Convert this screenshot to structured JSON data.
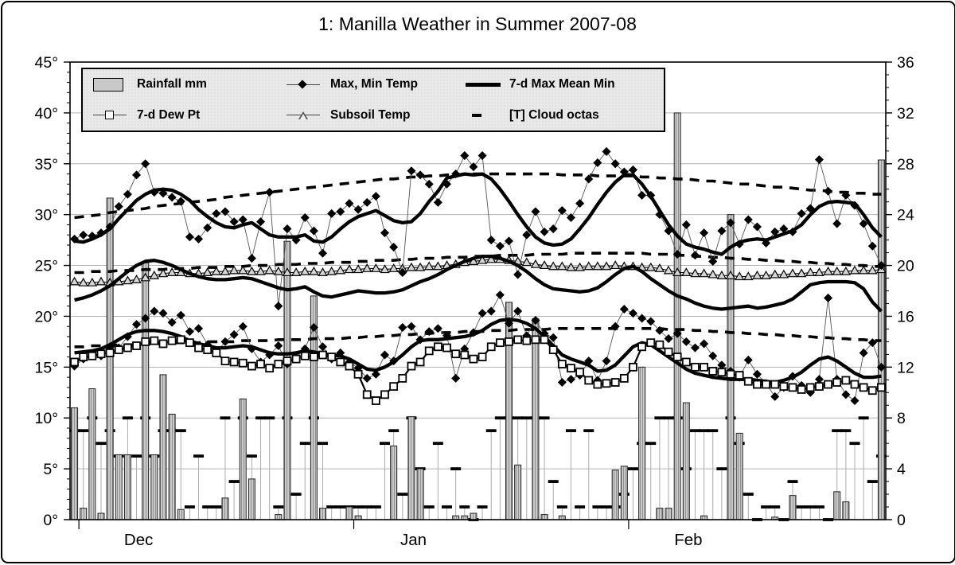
{
  "title": "1: Manilla Weather in Summer 2007-08",
  "legend": {
    "items": [
      {
        "label": "Rainfall mm",
        "marker": "gray-bar-swatch"
      },
      {
        "label": "Max, Min Temp",
        "marker": "black-diamond-on-line"
      },
      {
        "label": "7-d  Max Mean Min",
        "marker": "thick-black-line"
      },
      {
        "label": "7-d Dew Pt",
        "marker": "open-square-on-line"
      },
      {
        "label": "Subsoil Temp",
        "marker": "open-triangle-on-line"
      },
      {
        "label": "[T] Cloud octas",
        "marker": "short-black-dash"
      }
    ]
  },
  "colors": {
    "bar_fill": "#c9c9c9",
    "bar_hatch": "#8f8f8f",
    "bar_edge": "#222222",
    "grid": "#b3b3b3",
    "series_black": "#000000",
    "connector": "#555555",
    "cloud_stem": "#ababab",
    "triangle_fill": "#d6d6d6",
    "legend_bg": "#e9e9e9"
  },
  "chart_data": {
    "type": "composite",
    "title": "1: Manilla Weather in Summer 2007-08",
    "x": {
      "start": "30 Nov 2007",
      "end": "29 Feb 2008",
      "days": 92,
      "months": [
        {
          "label": "Dec",
          "boundary_index": 1
        },
        {
          "label": "Jan",
          "boundary_index": 32
        },
        {
          "label": "Feb",
          "boundary_index": 63
        }
      ]
    },
    "left_axis": {
      "unit": "degC",
      "min": 0,
      "max": 45,
      "major_step": 5,
      "minor_step": 1,
      "ticks": [
        "45°",
        "40°",
        "35°",
        "30°",
        "25°",
        "20°",
        "15°",
        "10°",
        "5°",
        "0°"
      ]
    },
    "right_axis": {
      "unit": "mm / octas x4",
      "min": 0,
      "max": 36,
      "major_step": 4,
      "minor_step": 1,
      "ticks": [
        "36",
        "32",
        "28",
        "24",
        "20",
        "16",
        "12",
        "8",
        "4",
        "0"
      ]
    },
    "grid": "horizontal-only",
    "legend_position": "top-inside",
    "series": {
      "max_temp": [
        27.6,
        28.0,
        27.9,
        28.2,
        28.8,
        30.8,
        32.0,
        33.9,
        35.0,
        32.2,
        32.1,
        31.7,
        31.3,
        27.8,
        27.6,
        28.7,
        30.1,
        30.3,
        29.3,
        29.5,
        25.7,
        29.3,
        32.2,
        21.0,
        28.6,
        27.5,
        29.7,
        28.4,
        26.2,
        30.1,
        30.3,
        31.1,
        30.5,
        31.2,
        31.8,
        28.2,
        26.8,
        24.3,
        34.3,
        33.9,
        33.0,
        31.2,
        33.0,
        34.0,
        35.8,
        34.7,
        35.8,
        27.5,
        26.9,
        27.4,
        24.1,
        28.0,
        30.3,
        28.3,
        28.6,
        30.4,
        29.7,
        31.1,
        33.5,
        35.1,
        36.2,
        35.0,
        34.2,
        34.4,
        31.9,
        31.9,
        30.0,
        28.4,
        26.1,
        29.0,
        26.0,
        28.2,
        25.4,
        28.4,
        29.2,
        27.1,
        29.5,
        28.8,
        27.2,
        28.3,
        28.6,
        28.3,
        30.1,
        30.6,
        35.4,
        32.3,
        29.1,
        31.9,
        30.9,
        29.1,
        26.9,
        25.0
      ],
      "min_temp": [
        15.1,
        15.8,
        16.2,
        16.1,
        17.0,
        16.9,
        18.0,
        19.2,
        19.8,
        20.5,
        20.3,
        19.4,
        20.1,
        18.5,
        18.8,
        17.2,
        16.4,
        17.5,
        18.2,
        19.0,
        16.8,
        15.5,
        16.2,
        17.1,
        15.3,
        16.0,
        16.8,
        18.9,
        17.0,
        15.8,
        16.4,
        15.5,
        14.9,
        13.9,
        14.3,
        16.2,
        15.6,
        18.9,
        19.0,
        17.7,
        18.5,
        18.8,
        18.1,
        13.9,
        16.8,
        18.4,
        20.3,
        20.5,
        22.1,
        19.3,
        20.5,
        18.1,
        19.6,
        18.3,
        17.9,
        13.5,
        13.8,
        14.2,
        15.6,
        13.7,
        15.6,
        19.0,
        20.7,
        20.3,
        19.8,
        19.5,
        18.6,
        17.8,
        18.3,
        17.5,
        16.9,
        17.3,
        16.1,
        15.2,
        14.6,
        14.0,
        15.7,
        14.3,
        13.4,
        12.1,
        13.0,
        14.1,
        13.2,
        12.5,
        13.8,
        21.8,
        13.8,
        12.3,
        11.7,
        16.4,
        17.4,
        15.0
      ],
      "max_7d": [
        27.4,
        27.3,
        27.6,
        28.0,
        28.6,
        29.6,
        30.5,
        31.4,
        32.0,
        32.4,
        32.5,
        32.4,
        32.0,
        31.4,
        30.5,
        29.8,
        29.2,
        28.8,
        28.7,
        29.0,
        29.2,
        28.6,
        28.0,
        27.8,
        27.8,
        27.8,
        28.0,
        27.4,
        27.3,
        27.8,
        28.6,
        29.3,
        29.8,
        30.1,
        30.4,
        29.9,
        29.4,
        29.2,
        29.3,
        30.1,
        31.3,
        32.3,
        33.6,
        33.8,
        34.0,
        33.9,
        34.0,
        33.5,
        32.5,
        31.3,
        30.0,
        28.8,
        27.8,
        27.2,
        27.0,
        27.1,
        27.6,
        28.6,
        29.7,
        31.0,
        32.2,
        33.2,
        33.9,
        33.9,
        33.0,
        31.8,
        30.4,
        29.0,
        27.9,
        27.1,
        26.8,
        26.6,
        26.3,
        26.1,
        26.8,
        27.3,
        27.5,
        27.6,
        27.5,
        27.8,
        28.1,
        28.4,
        29.0,
        30.0,
        30.8,
        31.2,
        31.3,
        31.2,
        31.1,
        30.0,
        28.7,
        27.8
      ],
      "mean_7d": [
        21.6,
        21.8,
        22.1,
        22.5,
        23.0,
        23.7,
        24.4,
        25.0,
        25.4,
        25.5,
        25.3,
        25.0,
        24.6,
        24.2,
        23.9,
        23.7,
        23.6,
        23.6,
        23.7,
        23.8,
        23.7,
        23.4,
        23.1,
        22.8,
        22.6,
        22.7,
        22.9,
        22.4,
        22.0,
        21.9,
        22.1,
        22.3,
        22.5,
        22.4,
        22.3,
        22.3,
        22.4,
        22.6,
        23.0,
        23.4,
        23.7,
        24.1,
        24.6,
        25.0,
        25.4,
        25.7,
        25.9,
        25.9,
        25.7,
        25.4,
        25.0,
        24.4,
        23.7,
        23.1,
        22.7,
        22.6,
        22.5,
        22.4,
        22.5,
        22.8,
        23.4,
        24.1,
        24.7,
        24.9,
        24.4,
        23.7,
        23.1,
        22.5,
        22.0,
        21.7,
        21.3,
        21.0,
        20.8,
        20.7,
        20.8,
        20.9,
        21.0,
        20.8,
        20.9,
        21.1,
        21.3,
        21.7,
        22.4,
        23.1,
        23.3,
        23.4,
        23.4,
        23.4,
        23.3,
        22.7,
        21.4,
        20.5
      ],
      "min_7d": [
        16.4,
        16.5,
        16.6,
        16.8,
        17.2,
        17.7,
        18.2,
        18.5,
        18.6,
        18.6,
        18.5,
        18.3,
        18.0,
        17.6,
        17.3,
        17.1,
        16.9,
        16.9,
        17.0,
        17.1,
        17.0,
        16.7,
        16.4,
        16.3,
        16.3,
        16.4,
        16.6,
        16.5,
        16.3,
        16.2,
        16.1,
        15.8,
        15.3,
        14.8,
        14.7,
        15.0,
        15.5,
        16.2,
        17.0,
        17.6,
        17.7,
        17.7,
        17.8,
        17.9,
        18.0,
        18.2,
        18.6,
        19.2,
        19.6,
        19.7,
        19.6,
        19.3,
        18.8,
        18.0,
        17.1,
        16.2,
        15.8,
        15.5,
        15.2,
        14.6,
        14.7,
        15.2,
        16.1,
        17.0,
        17.4,
        17.2,
        16.6,
        16.0,
        15.4,
        14.8,
        14.4,
        14.2,
        14.0,
        13.9,
        13.8,
        13.8,
        13.8,
        13.7,
        13.6,
        13.5,
        13.7,
        14.0,
        14.5,
        15.2,
        15.8,
        16.0,
        15.6,
        15.0,
        14.4,
        14.0,
        14.0,
        14.1
      ],
      "dew_pt_7d": [
        15.5,
        16.0,
        16.1,
        16.3,
        16.4,
        16.7,
        16.9,
        17.1,
        17.5,
        17.6,
        17.3,
        17.6,
        17.7,
        17.4,
        16.9,
        16.7,
        16.4,
        15.6,
        15.5,
        15.4,
        15.1,
        15.3,
        14.9,
        15.3,
        15.6,
        15.8,
        16.1,
        16.0,
        16.2,
        16.0,
        15.5,
        15.1,
        14.3,
        12.3,
        11.7,
        12.3,
        13.1,
        13.9,
        15.1,
        15.5,
        16.6,
        17.0,
        16.9,
        16.3,
        16.2,
        15.8,
        16.0,
        17.0,
        17.4,
        17.5,
        17.7,
        17.6,
        17.7,
        17.7,
        16.7,
        15.3,
        14.9,
        14.5,
        13.7,
        13.3,
        13.4,
        13.5,
        13.9,
        15.0,
        17.0,
        17.4,
        17.2,
        16.5,
        16.0,
        15.5,
        15.0,
        15.0,
        14.6,
        14.5,
        14.3,
        14.2,
        13.6,
        13.3,
        13.3,
        13.3,
        13.1,
        13.0,
        12.8,
        13.0,
        13.1,
        13.3,
        13.5,
        13.7,
        13.3,
        13.0,
        12.7,
        13.0
      ],
      "subsoil_temp": [
        23.4,
        23.3,
        23.3,
        23.4,
        23.3,
        23.4,
        23.5,
        23.6,
        23.8,
        24.0,
        24.2,
        24.3,
        24.3,
        24.2,
        24.2,
        24.3,
        24.4,
        24.4,
        24.5,
        24.5,
        24.4,
        24.4,
        24.5,
        24.4,
        24.3,
        24.3,
        24.4,
        24.4,
        24.3,
        24.4,
        24.5,
        24.6,
        24.6,
        24.7,
        24.7,
        24.6,
        24.7,
        24.7,
        24.8,
        24.8,
        24.9,
        24.9,
        25.0,
        25.1,
        25.3,
        25.4,
        25.5,
        25.6,
        25.6,
        25.5,
        25.4,
        25.3,
        25.1,
        25.0,
        24.9,
        24.9,
        24.8,
        24.8,
        24.9,
        24.9,
        24.9,
        25.0,
        24.9,
        24.9,
        24.8,
        24.8,
        24.7,
        24.5,
        24.3,
        24.3,
        24.2,
        24.2,
        24.1,
        24.0,
        24.0,
        23.9,
        23.9,
        24.0,
        24.0,
        24.1,
        24.1,
        24.2,
        24.2,
        24.3,
        24.3,
        24.4,
        24.4,
        24.4,
        24.5,
        24.5,
        24.5,
        24.6
      ],
      "normal_max": [
        29.7,
        29.8,
        29.9,
        30.0,
        30.2,
        30.3,
        30.4,
        30.5,
        30.6,
        30.8,
        30.9,
        31.0,
        31.1,
        31.2,
        31.3,
        31.4,
        31.5,
        31.7,
        31.8,
        31.9,
        32.0,
        32.1,
        32.2,
        32.3,
        32.4,
        32.5,
        32.6,
        32.7,
        32.8,
        32.9,
        33.0,
        33.1,
        33.2,
        33.3,
        33.4,
        33.5,
        33.5,
        33.6,
        33.7,
        33.7,
        33.8,
        33.8,
        33.9,
        33.9,
        34.0,
        34.0,
        34.0,
        34.0,
        34.0,
        34.0,
        34.0,
        34.0,
        34.0,
        34.0,
        34.0,
        33.9,
        33.9,
        33.9,
        33.9,
        33.8,
        33.8,
        33.8,
        33.8,
        33.8,
        33.7,
        33.7,
        33.6,
        33.6,
        33.5,
        33.5,
        33.4,
        33.3,
        33.3,
        33.2,
        33.1,
        33.0,
        33.0,
        32.9,
        32.8,
        32.7,
        32.7,
        32.6,
        32.5,
        32.4,
        32.4,
        32.3,
        32.2,
        32.2,
        32.1,
        32.1,
        32.0,
        32.0
      ],
      "normal_mean": [
        24.3,
        24.3,
        24.4,
        24.4,
        24.4,
        24.5,
        24.5,
        24.5,
        24.6,
        24.6,
        24.6,
        24.7,
        24.7,
        24.7,
        24.8,
        24.8,
        24.8,
        24.9,
        24.9,
        24.9,
        25.0,
        25.0,
        25.0,
        25.1,
        25.1,
        25.1,
        25.2,
        25.2,
        25.2,
        25.3,
        25.3,
        25.3,
        25.4,
        25.4,
        25.5,
        25.5,
        25.5,
        25.6,
        25.6,
        25.7,
        25.7,
        25.7,
        25.8,
        25.8,
        25.8,
        25.9,
        25.9,
        25.9,
        26.0,
        26.0,
        26.0,
        26.0,
        26.1,
        26.1,
        26.1,
        26.1,
        26.2,
        26.2,
        26.2,
        26.2,
        26.2,
        26.2,
        26.2,
        26.2,
        26.2,
        26.1,
        26.1,
        26.1,
        26.0,
        26.0,
        25.9,
        25.9,
        25.8,
        25.8,
        25.7,
        25.7,
        25.6,
        25.6,
        25.5,
        25.5,
        25.4,
        25.4,
        25.3,
        25.3,
        25.2,
        25.2,
        25.1,
        25.1,
        25.0,
        25.0,
        24.9,
        24.9
      ],
      "normal_min": [
        17.0,
        17.0,
        17.1,
        17.1,
        17.1,
        17.2,
        17.2,
        17.2,
        17.3,
        17.3,
        17.3,
        17.4,
        17.4,
        17.4,
        17.4,
        17.5,
        17.5,
        17.5,
        17.5,
        17.6,
        17.6,
        17.6,
        17.6,
        17.7,
        17.7,
        17.7,
        17.7,
        17.8,
        17.8,
        17.8,
        17.8,
        17.9,
        17.9,
        18.0,
        18.0,
        18.1,
        18.1,
        18.2,
        18.2,
        18.3,
        18.3,
        18.4,
        18.4,
        18.4,
        18.5,
        18.5,
        18.5,
        18.6,
        18.6,
        18.6,
        18.7,
        18.7,
        18.7,
        18.7,
        18.8,
        18.8,
        18.8,
        18.8,
        18.8,
        18.8,
        18.8,
        18.8,
        18.8,
        18.8,
        18.8,
        18.8,
        18.8,
        18.7,
        18.7,
        18.7,
        18.6,
        18.6,
        18.5,
        18.5,
        18.4,
        18.4,
        18.3,
        18.3,
        18.2,
        18.2,
        18.1,
        18.1,
        18.0,
        18.0,
        17.9,
        17.9,
        17.8,
        17.8,
        17.7,
        17.7,
        17.6,
        17.6
      ],
      "rainfall_mm": [
        8.8,
        0.9,
        10.3,
        0.5,
        25.3,
        5.1,
        5.1,
        0,
        20.2,
        5.1,
        11.4,
        8.3,
        0.8,
        0,
        0,
        0,
        0,
        1.7,
        0,
        9.5,
        3.2,
        0,
        0,
        0.4,
        21.9,
        0,
        0,
        17.6,
        0.9,
        0,
        0,
        1.0,
        0.3,
        0,
        0,
        0,
        5.8,
        0,
        8.1,
        4.0,
        0,
        0,
        0,
        0.3,
        0.3,
        0.5,
        0,
        0,
        0,
        17.1,
        4.3,
        0,
        15.8,
        0.4,
        0,
        0.3,
        0,
        0,
        0,
        0,
        0,
        3.9,
        4.2,
        0,
        12.0,
        0,
        0.9,
        0.9,
        32.0,
        9.2,
        0,
        0.3,
        0,
        0,
        24.0,
        6.8,
        0,
        0,
        0,
        0.2,
        0,
        1.9,
        0,
        0,
        0,
        0,
        2.2,
        1.4,
        0,
        0,
        0,
        28.3
      ],
      "cloud_octas": [
        7,
        7,
        8,
        6,
        7,
        5,
        8,
        5,
        8,
        5,
        7,
        7,
        7,
        1,
        5,
        1,
        1,
        8,
        3,
        8,
        5,
        8,
        8,
        1,
        8,
        2,
        6,
        8,
        6,
        1,
        1,
        1,
        1,
        1,
        1,
        6,
        7,
        2,
        8,
        4,
        1,
        6,
        1,
        4,
        1,
        0,
        1,
        7,
        8,
        8,
        8,
        8,
        8,
        8,
        3,
        1,
        7,
        1,
        7,
        1,
        1,
        1,
        2,
        4,
        6,
        6,
        8,
        8,
        8,
        4,
        7,
        7,
        7,
        4,
        8,
        6,
        2,
        0,
        1,
        1,
        0,
        3,
        1,
        1,
        1,
        0,
        7,
        7,
        6,
        8,
        3,
        5
      ]
    }
  }
}
